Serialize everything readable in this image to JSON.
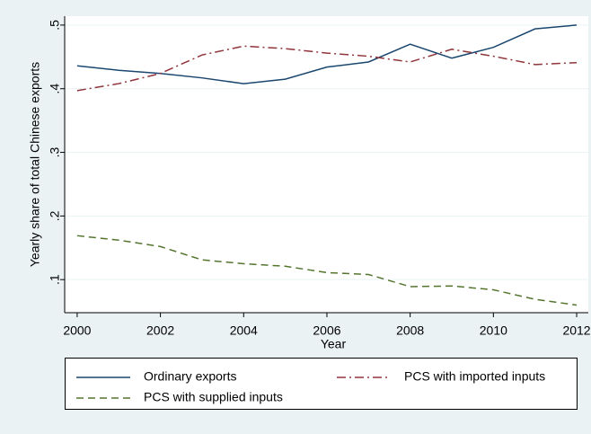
{
  "chart_data": {
    "type": "line",
    "x": [
      2000,
      2001,
      2002,
      2003,
      2004,
      2005,
      2006,
      2007,
      2008,
      2009,
      2010,
      2011,
      2012
    ],
    "series": [
      {
        "name": "Ordinary exports",
        "color": "#1a476f",
        "dash": "solid",
        "values": [
          0.436,
          0.429,
          0.424,
          0.417,
          0.408,
          0.415,
          0.434,
          0.442,
          0.47,
          0.448,
          0.465,
          0.494,
          0.5
        ]
      },
      {
        "name": "PCS with imported inputs",
        "color": "#90353b",
        "dash": "dashdot",
        "values": [
          0.397,
          0.408,
          0.424,
          0.453,
          0.467,
          0.463,
          0.456,
          0.451,
          0.442,
          0.462,
          0.451,
          0.438,
          0.441
        ]
      },
      {
        "name": "PCS with supplied inputs",
        "color": "#55752f",
        "dash": "dash",
        "values": [
          0.169,
          0.162,
          0.152,
          0.131,
          0.125,
          0.121,
          0.111,
          0.108,
          0.089,
          0.09,
          0.084,
          0.069,
          0.06
        ]
      }
    ],
    "x_label": "Year",
    "y_label": "Yearly share of total Chinese exports",
    "xlim": [
      1999.7,
      2012.28
    ],
    "xticks": [
      2000,
      2002,
      2004,
      2006,
      2008,
      2010,
      2012
    ],
    "ylim": [
      0.048,
      0.514
    ],
    "yticks": [
      {
        "value": 0.1,
        "label": ".1"
      },
      {
        "value": 0.2,
        "label": ".2"
      },
      {
        "value": 0.3,
        "label": ".3"
      },
      {
        "value": 0.4,
        "label": ".4"
      },
      {
        "value": 0.5,
        "label": ".5"
      }
    ],
    "grid": true,
    "legend": "bottom"
  }
}
